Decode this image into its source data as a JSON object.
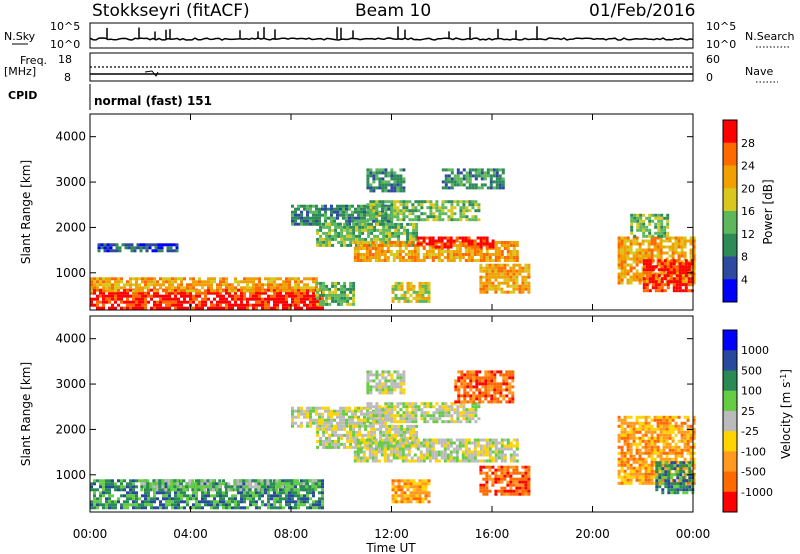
{
  "header": {
    "station": "Stokkseyri (fitACF)",
    "beam": "Beam 10",
    "date": "01/Feb/2016"
  },
  "status_panels": {
    "nsky_label": "N.Sky",
    "nsky_ticks": [
      "10^5",
      "10^0"
    ],
    "nsky_right_ticks": [
      "10^5",
      "10^0"
    ],
    "nsearch_label": "N.Search",
    "freq_label": "Freq.",
    "freq_unit": "[MHz]",
    "freq_ticks": [
      "18",
      "8"
    ],
    "nave_ticks": [
      "60",
      "0"
    ],
    "nave_label": "Nave",
    "cpid_label": "CPID",
    "cpid_value": "normal (fast) 151"
  },
  "time_axis": {
    "label": "Time UT",
    "ticks": [
      "00:00",
      "04:00",
      "08:00",
      "12:00",
      "16:00",
      "20:00",
      "00:00"
    ]
  },
  "colors": {
    "power": [
      "#0000ff",
      "#2e4aa0",
      "#2e8b57",
      "#5db85d",
      "#d8c81e",
      "#f0a000",
      "#ff6a00",
      "#ff0000"
    ],
    "velocity": [
      "#0000ff",
      "#274a9e",
      "#2a8a56",
      "#66cc44",
      "#bbbbbb",
      "#ffd400",
      "#ff9a1e",
      "#ff6a00",
      "#ff0000"
    ]
  },
  "chart_data": [
    {
      "type": "heatmap",
      "name": "power",
      "ylabel": "Slant Range [km]",
      "xlabel": "Time UT",
      "xlim": [
        0,
        24
      ],
      "ylim": [
        180,
        4500
      ],
      "yticks": [
        1000,
        2000,
        3000,
        4000
      ],
      "colorbar": {
        "label": "Power [dB]",
        "ticks": [
          "4",
          "8",
          "12",
          "16",
          "20",
          "24",
          "28"
        ],
        "range": [
          0,
          32
        ]
      },
      "regions": [
        {
          "t0": 0.0,
          "t1": 9.2,
          "r0": 250,
          "r1": 650,
          "level": 7
        },
        {
          "t0": 0.0,
          "t1": 9.0,
          "r0": 600,
          "r1": 900,
          "level": 5
        },
        {
          "t0": 9.0,
          "t1": 10.5,
          "r0": 300,
          "r1": 800,
          "level": 3
        },
        {
          "t0": 8.0,
          "t1": 12.0,
          "r0": 2100,
          "r1": 2500,
          "level": 2
        },
        {
          "t0": 9.0,
          "t1": 13.0,
          "r0": 1600,
          "r1": 2100,
          "level": 3
        },
        {
          "t0": 10.5,
          "t1": 17.0,
          "r0": 1300,
          "r1": 1700,
          "level": 5
        },
        {
          "t0": 13.0,
          "t1": 16.0,
          "r0": 1550,
          "r1": 1800,
          "level": 7
        },
        {
          "t0": 11.0,
          "t1": 15.5,
          "r0": 2200,
          "r1": 2600,
          "level": 3
        },
        {
          "t0": 11.0,
          "t1": 12.5,
          "r0": 2800,
          "r1": 3300,
          "level": 2
        },
        {
          "t0": 14.0,
          "t1": 16.5,
          "r0": 2900,
          "r1": 3300,
          "level": 2
        },
        {
          "t0": 15.5,
          "t1": 17.5,
          "r0": 600,
          "r1": 1200,
          "level": 5
        },
        {
          "t0": 12.0,
          "t1": 13.5,
          "r0": 400,
          "r1": 800,
          "level": 4
        },
        {
          "t0": 21.0,
          "t1": 24.0,
          "r0": 800,
          "r1": 1800,
          "level": 5
        },
        {
          "t0": 22.0,
          "t1": 24.0,
          "r0": 600,
          "r1": 1300,
          "level": 7
        },
        {
          "t0": 21.5,
          "t1": 23.0,
          "r0": 1800,
          "r1": 2300,
          "level": 3
        },
        {
          "t0": 0.3,
          "t1": 3.5,
          "r0": 1500,
          "r1": 1650,
          "level": 1
        }
      ]
    },
    {
      "type": "heatmap",
      "name": "velocity",
      "ylabel": "Slant Range [km]",
      "xlabel": "Time UT",
      "xlim": [
        0,
        24
      ],
      "ylim": [
        180,
        4500
      ],
      "yticks": [
        1000,
        2000,
        3000,
        4000
      ],
      "colorbar": {
        "label": "Velocity [m s-1]",
        "ticks": [
          "1000",
          "500",
          "100",
          "25",
          "-25",
          "-100",
          "-500",
          "-1000"
        ],
        "range": [
          -1200,
          1200
        ]
      },
      "regions": [
        {
          "t0": 0.0,
          "t1": 9.2,
          "r0": 250,
          "r1": 900,
          "level": 2
        },
        {
          "t0": 2.0,
          "t1": 9.0,
          "r0": 650,
          "r1": 900,
          "level": 3
        },
        {
          "t0": 8.0,
          "t1": 12.0,
          "r0": 2100,
          "r1": 2500,
          "level": 4
        },
        {
          "t0": 9.0,
          "t1": 13.0,
          "r0": 1600,
          "r1": 2100,
          "level": 4
        },
        {
          "t0": 10.5,
          "t1": 17.0,
          "r0": 1300,
          "r1": 1800,
          "level": 4
        },
        {
          "t0": 11.0,
          "t1": 15.5,
          "r0": 2200,
          "r1": 2600,
          "level": 4
        },
        {
          "t0": 11.0,
          "t1": 12.5,
          "r0": 2800,
          "r1": 3300,
          "level": 4
        },
        {
          "t0": 14.5,
          "t1": 16.8,
          "r0": 2600,
          "r1": 3300,
          "level": 7
        },
        {
          "t0": 15.5,
          "t1": 17.5,
          "r0": 600,
          "r1": 1200,
          "level": 7
        },
        {
          "t0": 12.0,
          "t1": 13.5,
          "r0": 400,
          "r1": 900,
          "level": 6
        },
        {
          "t0": 21.0,
          "t1": 24.0,
          "r0": 800,
          "r1": 2300,
          "level": 6
        },
        {
          "t0": 22.5,
          "t1": 24.0,
          "r0": 600,
          "r1": 1300,
          "level": 2
        }
      ]
    }
  ]
}
